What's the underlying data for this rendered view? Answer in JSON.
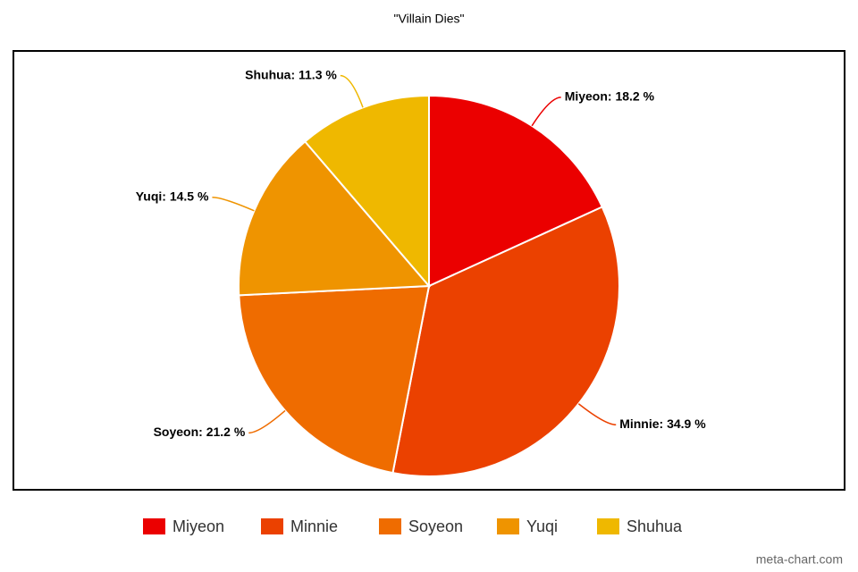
{
  "chart_data": {
    "type": "pie",
    "title": "\"Villain Dies\"",
    "categories": [
      "Miyeon",
      "Minnie",
      "Soyeon",
      "Yuqi",
      "Shuhua"
    ],
    "values": [
      18.2,
      34.9,
      21.2,
      14.5,
      11.3
    ],
    "value_labels": [
      "Miyeon: 18.2 %",
      "Minnie: 34.9 %",
      "Soyeon: 21.2 %",
      "Yuqi: 14.5 %",
      "Shuhua: 11.3 %"
    ],
    "colors": [
      "#eb0000",
      "#eb4100",
      "#ef6c00",
      "#ef9400",
      "#efb800"
    ],
    "legend": "bottom",
    "watermark": "meta-chart.com"
  }
}
